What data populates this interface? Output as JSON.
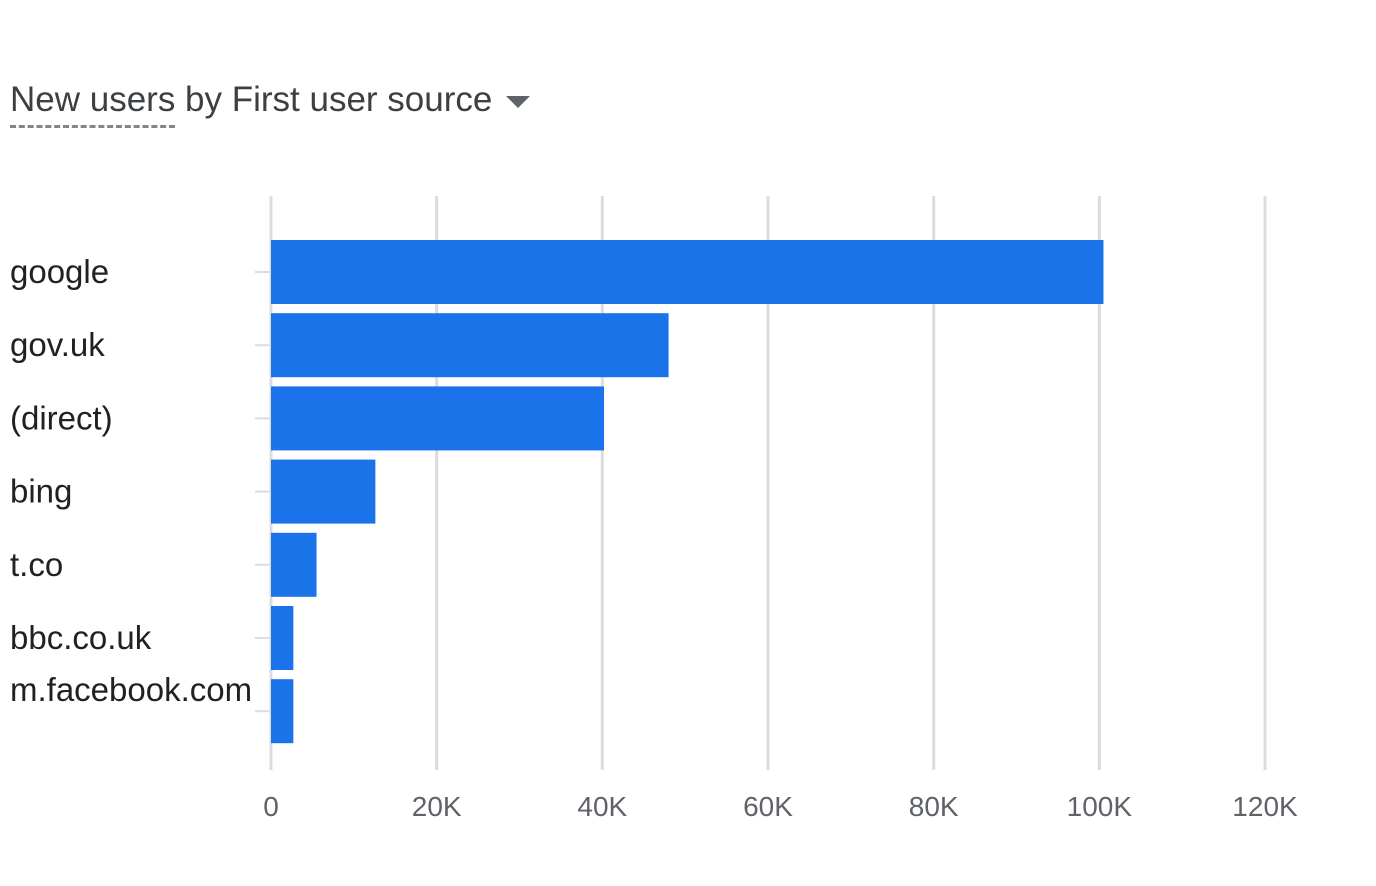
{
  "header": {
    "title_metric": "New users",
    "title_rest": " by First user source"
  },
  "chart_data": {
    "type": "bar",
    "orientation": "horizontal",
    "title": "New users by First user source",
    "categories": [
      "google",
      "gov.uk",
      "(direct)",
      "bing",
      "t.co",
      "bbc.co.uk",
      "m.facebook.com"
    ],
    "values": [
      100500,
      48000,
      40200,
      12600,
      5500,
      2700,
      2700
    ],
    "xlim": [
      0,
      120000
    ],
    "xticks": [
      0,
      20000,
      40000,
      60000,
      80000,
      100000,
      120000
    ],
    "xtick_labels": [
      "0",
      "20K",
      "40K",
      "60K",
      "80K",
      "100K",
      "120K"
    ],
    "grid": "vertical",
    "bar_color": "#1a73e8",
    "grid_color": "#dadce0"
  }
}
